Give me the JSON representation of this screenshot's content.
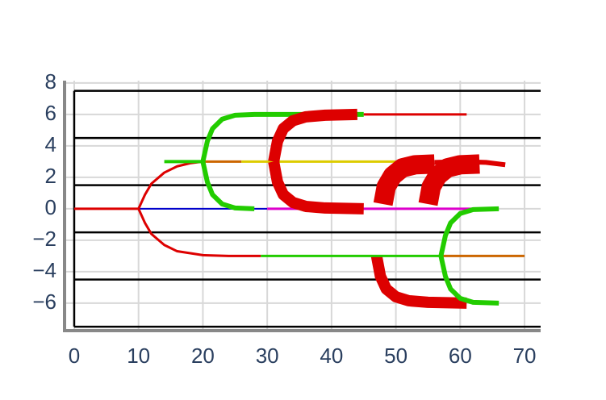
{
  "chart_data": {
    "type": "line",
    "xlim": [
      -1.5,
      72.5
    ],
    "ylim": [
      -7.75,
      8.15
    ],
    "xticks": [
      0,
      10,
      20,
      30,
      40,
      50,
      60,
      70
    ],
    "yticks": [
      {
        "value": -6,
        "label": "−6"
      },
      {
        "value": -4,
        "label": "−4"
      },
      {
        "value": -2,
        "label": "−2"
      },
      0,
      2,
      4,
      6,
      8
    ],
    "grid": true,
    "series": [
      {
        "color": "#000000",
        "width": 2.5,
        "x": [
          0,
          72.5
        ],
        "y": [
          7.5,
          7.5
        ]
      },
      {
        "color": "#000000",
        "width": 2.5,
        "x": [
          0,
          72.5
        ],
        "y": [
          4.5,
          4.5
        ]
      },
      {
        "color": "#000000",
        "width": 2.5,
        "x": [
          0,
          72.5
        ],
        "y": [
          1.5,
          1.5
        ]
      },
      {
        "color": "#000000",
        "width": 2.5,
        "x": [
          0,
          72.5
        ],
        "y": [
          -1.5,
          -1.5
        ]
      },
      {
        "color": "#000000",
        "width": 2.5,
        "x": [
          0,
          72.5
        ],
        "y": [
          -4.5,
          -4.5
        ]
      },
      {
        "color": "#000000",
        "width": 2.5,
        "x": [
          0,
          72.5
        ],
        "y": [
          -7.5,
          -7.5
        ]
      },
      {
        "color": "#000000",
        "width": 2.5,
        "x": [
          0,
          0
        ],
        "y": [
          -7.5,
          7.5
        ]
      },
      {
        "color": "#dd0000",
        "width": 3,
        "x": [
          0,
          10
        ],
        "y": [
          0,
          0
        ]
      },
      {
        "color": "#0000cc",
        "width": 2,
        "x": [
          10,
          30
        ],
        "y": [
          0,
          0
        ]
      },
      {
        "color": "#dd00cc",
        "width": 3,
        "x": [
          30,
          62
        ],
        "y": [
          0,
          0
        ]
      },
      {
        "color": "#dd0000",
        "width": 3,
        "x": [
          10,
          11,
          12,
          14,
          16,
          18,
          20
        ],
        "y": [
          0,
          0.9,
          1.6,
          2.3,
          2.7,
          2.9,
          3
        ]
      },
      {
        "color": "#dd0000",
        "width": 3,
        "x": [
          10,
          11,
          12,
          14,
          16,
          20,
          24,
          29
        ],
        "y": [
          0,
          -0.9,
          -1.6,
          -2.3,
          -2.7,
          -2.95,
          -3,
          -3
        ]
      },
      {
        "color": "#22cc00",
        "width": 4,
        "x": [
          14,
          20
        ],
        "y": [
          3,
          3
        ]
      },
      {
        "color": "#cc6600",
        "width": 3,
        "x": [
          20,
          26
        ],
        "y": [
          3,
          3
        ]
      },
      {
        "color": "#ddcc00",
        "width": 3,
        "x": [
          26,
          50
        ],
        "y": [
          3,
          3
        ]
      },
      {
        "color": "#22cc00",
        "width": 6,
        "x": [
          20,
          20.7,
          21.5,
          23,
          25,
          28,
          45
        ],
        "y": [
          3,
          4.3,
          5.1,
          5.7,
          5.95,
          6,
          6
        ]
      },
      {
        "color": "#22cc00",
        "width": 6,
        "x": [
          20,
          20.7,
          21.5,
          23,
          25,
          28
        ],
        "y": [
          3,
          1.7,
          0.9,
          0.3,
          0.05,
          0
        ]
      },
      {
        "color": "#dd0000",
        "width": 3,
        "x": [
          45,
          61
        ],
        "y": [
          6,
          6
        ]
      },
      {
        "color": "#dd0000",
        "width": 14,
        "x": [
          31,
          31.6,
          32.5,
          34,
          36,
          39,
          44
        ],
        "y": [
          3,
          4.3,
          5.1,
          5.6,
          5.85,
          5.95,
          6
        ]
      },
      {
        "color": "#dd0000",
        "width": 14,
        "x": [
          31,
          31.6,
          32.5,
          34,
          36,
          39,
          45
        ],
        "y": [
          3,
          1.7,
          0.9,
          0.4,
          0.15,
          0.05,
          0
        ]
      },
      {
        "color": "#dd0000",
        "width": 24,
        "x": [
          48,
          48.5,
          49.5,
          51,
          53,
          56
        ],
        "y": [
          0.3,
          1.4,
          2.1,
          2.6,
          2.8,
          2.85
        ]
      },
      {
        "color": "#dd0000",
        "width": 24,
        "x": [
          55,
          55.5,
          56.5,
          58,
          60,
          63
        ],
        "y": [
          0.3,
          1.4,
          2.1,
          2.6,
          2.8,
          2.85
        ]
      },
      {
        "color": "#dd0000",
        "width": 6,
        "x": [
          56,
          60,
          64,
          67
        ],
        "y": [
          2.95,
          3,
          2.95,
          2.8
        ]
      },
      {
        "color": "#dd0000",
        "width": 14,
        "x": [
          47,
          47.6,
          48.5,
          50,
          52,
          55,
          61
        ],
        "y": [
          -3,
          -4.3,
          -5.1,
          -5.6,
          -5.85,
          -5.95,
          -6
        ]
      },
      {
        "color": "#22cc00",
        "width": 3,
        "x": [
          29,
          57
        ],
        "y": [
          -3,
          -3
        ]
      },
      {
        "color": "#cc6600",
        "width": 3,
        "x": [
          57,
          70
        ],
        "y": [
          -3,
          -3
        ]
      },
      {
        "color": "#22cc00",
        "width": 6,
        "x": [
          57,
          57.7,
          58.5,
          60,
          62,
          66
        ],
        "y": [
          -3,
          -1.7,
          -0.9,
          -0.3,
          -0.05,
          0
        ]
      },
      {
        "color": "#22cc00",
        "width": 6,
        "x": [
          57,
          57.7,
          58.5,
          60,
          62,
          66
        ],
        "y": [
          -3,
          -4.3,
          -5.1,
          -5.7,
          -5.95,
          -6
        ]
      }
    ]
  }
}
